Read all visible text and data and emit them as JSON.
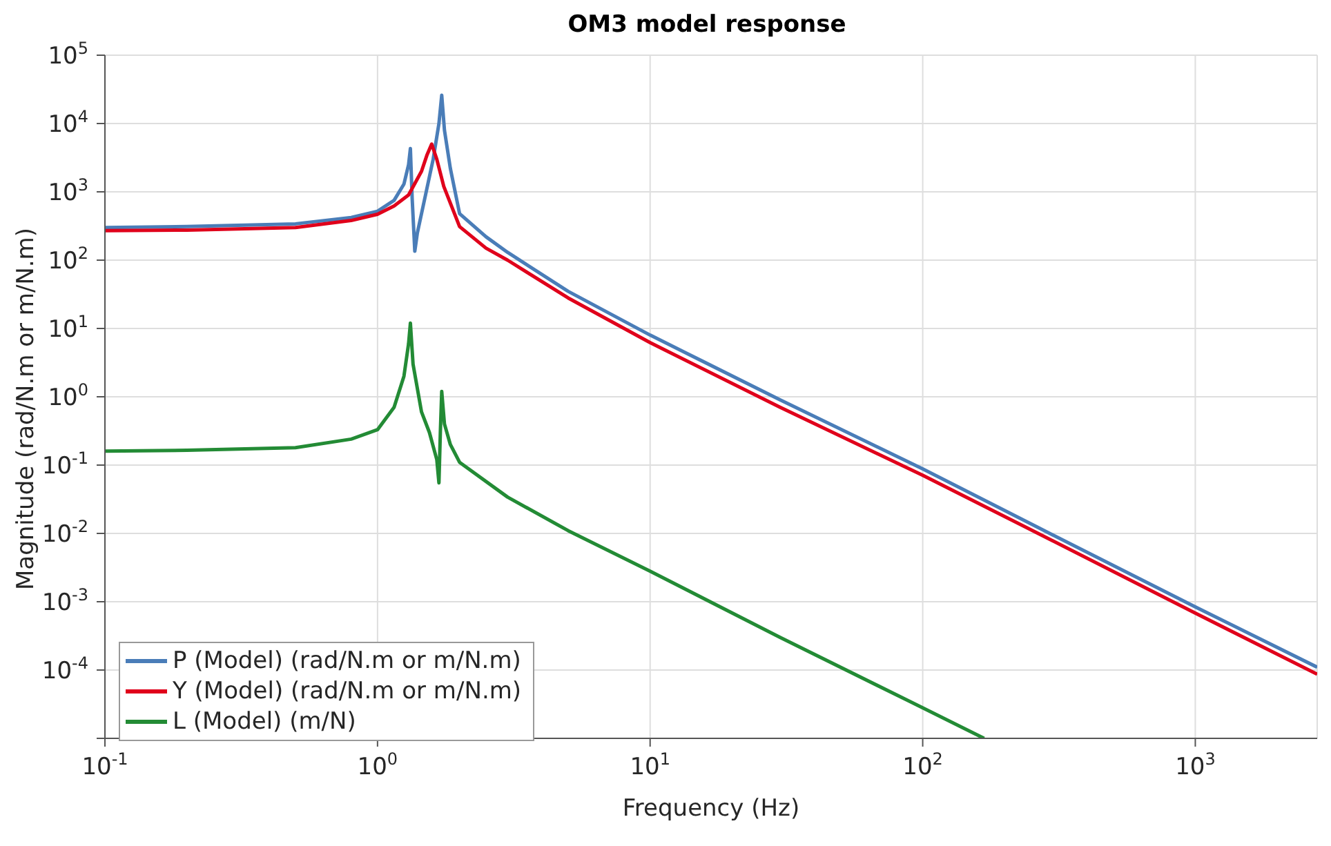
{
  "chart_data": {
    "type": "line",
    "title": "OM3 model response",
    "xlabel": "Frequency (Hz)",
    "ylabel": "Magnitude (rad/N.m or m/N.m)",
    "log": "xy",
    "grid": true,
    "legend": "bottom left",
    "marker": "none",
    "line_style": "solid",
    "xlim": [
      0.1,
      2800
    ],
    "ylim": [
      1e-05,
      100000
    ],
    "xticks": [
      {
        "value": 0.1,
        "label": "10$^{-1}$"
      },
      {
        "value": 1,
        "label": "10$^{0}$"
      },
      {
        "value": 10,
        "label": "10$^{1}$"
      },
      {
        "value": 100,
        "label": "10$^{2}$"
      },
      {
        "value": 1000,
        "label": "10$^{3}$"
      }
    ],
    "yticks": [
      {
        "value": 1e-05,
        "label": null
      },
      {
        "value": 0.0001,
        "label": "10$^{-4}$"
      },
      {
        "value": 0.001,
        "label": "10$^{-3}$"
      },
      {
        "value": 0.01,
        "label": "10$^{-2}$"
      },
      {
        "value": 0.1,
        "label": "10$^{-1}$"
      },
      {
        "value": 1,
        "label": "10$^{0}$"
      },
      {
        "value": 10,
        "label": "10$^{1}$"
      },
      {
        "value": 100,
        "label": "10$^{2}$"
      },
      {
        "value": 1000,
        "label": "10$^{3}$"
      },
      {
        "value": 10000,
        "label": "10$^{4}$"
      },
      {
        "value": 100000,
        "label": "10$^{5}$"
      }
    ],
    "series": [
      {
        "name": "P (Model) (rad/N.m or m/N.m)",
        "color": "#4a7db8",
        "x": [
          0.1,
          0.2,
          0.5,
          0.8,
          1.0,
          1.15,
          1.25,
          1.3,
          1.32,
          1.34,
          1.37,
          1.4,
          1.5,
          1.6,
          1.68,
          1.72,
          1.76,
          1.85,
          2,
          2.5,
          3,
          5,
          10,
          30,
          100,
          300,
          1000,
          2800
        ],
        "values": [
          300,
          310,
          340,
          420,
          520,
          750,
          1300,
          2500,
          4300,
          800,
          135,
          250,
          900,
          3000,
          10000,
          26000,
          8000,
          2200,
          480,
          220,
          130,
          35,
          8,
          0.9,
          0.088,
          0.0095,
          0.00084,
          0.00011
        ]
      },
      {
        "name": "Y (Model) (rad/N.m or m/N.m)",
        "color": "#e0001b",
        "x": [
          0.1,
          0.2,
          0.5,
          0.8,
          1.0,
          1.15,
          1.3,
          1.45,
          1.52,
          1.58,
          1.65,
          1.75,
          2,
          2.5,
          3,
          5,
          10,
          30,
          100,
          300,
          1000,
          2800
        ],
        "values": [
          270,
          275,
          300,
          380,
          470,
          620,
          900,
          2000,
          3500,
          5000,
          3000,
          1200,
          310,
          150,
          100,
          28,
          6.2,
          0.7,
          0.071,
          0.0078,
          0.00068,
          8.7e-05
        ]
      },
      {
        "name": "L (Model) (m/N)",
        "color": "#238b35",
        "x": [
          0.1,
          0.2,
          0.5,
          0.8,
          1.0,
          1.15,
          1.25,
          1.3,
          1.32,
          1.35,
          1.45,
          1.55,
          1.65,
          1.68,
          1.7,
          1.72,
          1.76,
          1.85,
          2,
          3,
          5,
          10,
          30,
          100,
          168
        ],
        "values": [
          0.16,
          0.165,
          0.18,
          0.24,
          0.33,
          0.7,
          2,
          6,
          12,
          3,
          0.6,
          0.3,
          0.12,
          0.055,
          0.3,
          1.2,
          0.4,
          0.2,
          0.11,
          0.034,
          0.011,
          0.0028,
          0.0003,
          2.8e-05,
          1e-05
        ]
      }
    ]
  }
}
